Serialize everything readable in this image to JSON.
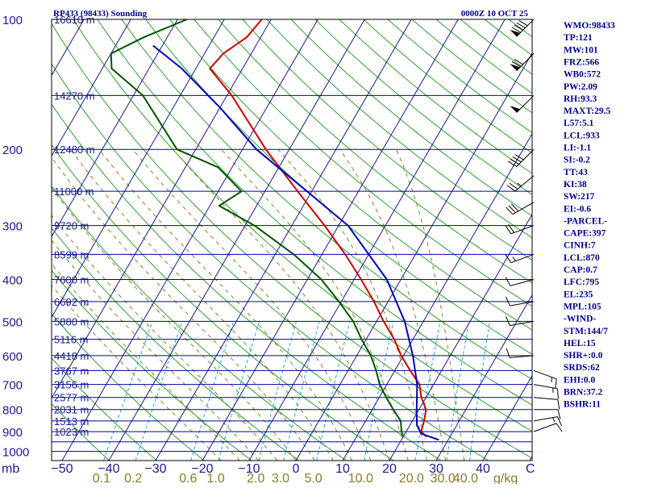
{
  "header": {
    "station": "RP433 (98433) Sounding",
    "time": "0000Z 10 OCT 25"
  },
  "chart_data": {
    "type": "skew-t log-p sounding",
    "title": "RP433 (98433) Sounding",
    "valid_time": "0000Z 10 OCT 25",
    "pressure_axis": {
      "unit": "mb",
      "ticks": [
        100,
        200,
        300,
        400,
        500,
        600,
        700,
        800,
        900,
        1000
      ]
    },
    "height_labels": [
      {
        "p": 100,
        "label": "16610 m"
      },
      {
        "p": 150,
        "label": "14270 m"
      },
      {
        "p": 200,
        "label": "12480 m"
      },
      {
        "p": 250,
        "label": "11000 m"
      },
      {
        "p": 300,
        "label": "9720 m"
      },
      {
        "p": 350,
        "label": "8599 m"
      },
      {
        "p": 400,
        "label": "7600 m"
      },
      {
        "p": 450,
        "label": "6692 m"
      },
      {
        "p": 500,
        "label": "5880 m"
      },
      {
        "p": 550,
        "label": "5116 m"
      },
      {
        "p": 600,
        "label": "4418 m"
      },
      {
        "p": 650,
        "label": "3767 m"
      },
      {
        "p": 700,
        "label": "3156 m"
      },
      {
        "p": 750,
        "label": "2577 m"
      },
      {
        "p": 800,
        "label": "2031 m"
      },
      {
        "p": 850,
        "label": "1513 m"
      },
      {
        "p": 900,
        "label": "1023 m"
      }
    ],
    "temperature_axis": {
      "unit": "C",
      "label": "C",
      "ticks": [
        -50,
        -40,
        -30,
        -20,
        -10,
        0,
        10,
        20,
        30,
        40
      ],
      "tick_labels": [
        "−50",
        "−40",
        "−30",
        "−20",
        "−10",
        "0",
        "10",
        "20",
        "30",
        "40"
      ]
    },
    "mixing_ratio_axis": {
      "unit": "g/kg",
      "label": "g/kg",
      "ticks": [
        0.1,
        0.2,
        0.6,
        1.0,
        2.0,
        3.0,
        5.0,
        10.0,
        20.0,
        30.0,
        40.0
      ],
      "tick_labels": [
        "0.1",
        "0.2",
        "0.6",
        "1.0",
        "2.0",
        "3.0",
        "5.0",
        "10.0",
        "20.0",
        "30.0",
        "40.0"
      ]
    },
    "series": [
      {
        "name": "Temperature",
        "color": "#cc0000",
        "points": [
          {
            "p": 925,
            "t": 25.0
          },
          {
            "p": 900,
            "t": 23.2
          },
          {
            "p": 850,
            "t": 22.5
          },
          {
            "p": 800,
            "t": 21.5
          },
          {
            "p": 750,
            "t": 19.0
          },
          {
            "p": 700,
            "t": 17.0
          },
          {
            "p": 650,
            "t": 13.3
          },
          {
            "p": 600,
            "t": 9.5
          },
          {
            "p": 550,
            "t": 6.0
          },
          {
            "p": 500,
            "t": 1.5
          },
          {
            "p": 450,
            "t": -3.0
          },
          {
            "p": 400,
            "t": -8.5
          },
          {
            "p": 350,
            "t": -15.0
          },
          {
            "p": 300,
            "t": -23.0
          },
          {
            "p": 250,
            "t": -33.0
          },
          {
            "p": 200,
            "t": -45.0
          },
          {
            "p": 150,
            "t": -59.0
          },
          {
            "p": 130,
            "t": -67.0
          },
          {
            "p": 120,
            "t": -66.0
          },
          {
            "p": 110,
            "t": -63.0
          },
          {
            "p": 100,
            "t": -62.0
          }
        ]
      },
      {
        "name": "Dewpoint",
        "color": "#005500",
        "points": [
          {
            "p": 925,
            "t": 20.0
          },
          {
            "p": 900,
            "t": 19.0
          },
          {
            "p": 850,
            "t": 17.5
          },
          {
            "p": 800,
            "t": 14.5
          },
          {
            "p": 750,
            "t": 11.5
          },
          {
            "p": 700,
            "t": 8.5
          },
          {
            "p": 650,
            "t": 6.0
          },
          {
            "p": 600,
            "t": 3.0
          },
          {
            "p": 550,
            "t": -1.0
          },
          {
            "p": 500,
            "t": -5.0
          },
          {
            "p": 450,
            "t": -10.5
          },
          {
            "p": 400,
            "t": -17.0
          },
          {
            "p": 350,
            "t": -26.0
          },
          {
            "p": 300,
            "t": -38.0
          },
          {
            "p": 270,
            "t": -48.0
          },
          {
            "p": 250,
            "t": -45.0
          },
          {
            "p": 220,
            "t": -53.0
          },
          {
            "p": 200,
            "t": -64.0
          },
          {
            "p": 150,
            "t": -78.0
          },
          {
            "p": 130,
            "t": -88.0
          },
          {
            "p": 120,
            "t": -90.0
          },
          {
            "p": 110,
            "t": -85.0
          },
          {
            "p": 100,
            "t": -78.0
          }
        ]
      },
      {
        "name": "Parcel",
        "color": "#0000bb",
        "points": [
          {
            "p": 940,
            "t": 28.0
          },
          {
            "p": 910,
            "t": 23.5
          },
          {
            "p": 870,
            "t": 21.5
          },
          {
            "p": 800,
            "t": 19.5
          },
          {
            "p": 700,
            "t": 16.5
          },
          {
            "p": 600,
            "t": 12.0
          },
          {
            "p": 500,
            "t": 6.0
          },
          {
            "p": 400,
            "t": -3.0
          },
          {
            "p": 300,
            "t": -18.0
          },
          {
            "p": 250,
            "t": -31.0
          },
          {
            "p": 200,
            "t": -47.0
          },
          {
            "p": 160,
            "t": -60.0
          },
          {
            "p": 130,
            "t": -73.0
          },
          {
            "p": 115,
            "t": -82.0
          }
        ]
      }
    ],
    "wind_barbs": [
      {
        "p": 100,
        "dir": 225,
        "spd": 90
      },
      {
        "p": 120,
        "dir": 225,
        "spd": 70
      },
      {
        "p": 150,
        "dir": 225,
        "spd": 50
      },
      {
        "p": 200,
        "dir": 225,
        "spd": 40
      },
      {
        "p": 230,
        "dir": 230,
        "spd": 25
      },
      {
        "p": 265,
        "dir": 240,
        "spd": 30
      },
      {
        "p": 300,
        "dir": 250,
        "spd": 20
      },
      {
        "p": 350,
        "dir": 250,
        "spd": 15
      },
      {
        "p": 400,
        "dir": 255,
        "spd": 10
      },
      {
        "p": 450,
        "dir": 260,
        "spd": 10
      },
      {
        "p": 500,
        "dir": 260,
        "spd": 10
      },
      {
        "p": 600,
        "dir": 265,
        "spd": 10
      },
      {
        "p": 650,
        "dir": 110,
        "spd": 15
      },
      {
        "p": 700,
        "dir": 100,
        "spd": 15
      },
      {
        "p": 750,
        "dir": 95,
        "spd": 10
      },
      {
        "p": 800,
        "dir": 90,
        "spd": 10
      },
      {
        "p": 850,
        "dir": 80,
        "spd": 15
      },
      {
        "p": 900,
        "dir": 70,
        "spd": 10
      }
    ]
  },
  "indices": [
    "WMO:98433",
    "TP:121",
    "MW:101",
    "FRZ:566",
    "WB0:572",
    "PW:2.09",
    "RH:93.3",
    "MAXT:29.5",
    "L57:5.1",
    "LCL:933",
    "LI:-1.1",
    "SI:-0.2",
    "TT:43",
    "KI:38",
    "SW:217",
    "EI:-0.6",
    "-PARCEL-",
    "CAPE:397",
    "CINH:7",
    "LCL:870",
    "CAP:0.7",
    "LFC:795",
    "EL:235",
    "MPL:105",
    "-WIND-",
    "STM:144/7",
    "HEL:15",
    "SHR+:0.0",
    "SRDS:62",
    "EHI:0.0",
    "BRN:37.2",
    "BSHR:11"
  ],
  "colors": {
    "isobar": "#0000aa",
    "isotherm": "#1a1a8c",
    "dry_adiabat": "#2ea02e",
    "moist_adiabat": "#7a8a2a",
    "mixing_ratio": "#22a8d8",
    "frame": "#000000"
  }
}
